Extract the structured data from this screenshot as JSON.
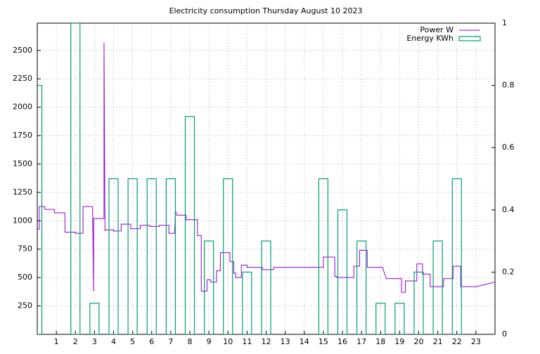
{
  "chart_data": {
    "type": "line",
    "title": "Electricity consumption Thursday August 10 2023",
    "xlim": [
      0,
      24
    ],
    "xticks": [
      1,
      2,
      3,
      4,
      5,
      6,
      7,
      8,
      9,
      10,
      11,
      12,
      13,
      14,
      15,
      16,
      17,
      18,
      19,
      20,
      21,
      22,
      23
    ],
    "ylim": [
      0,
      2740
    ],
    "yticks": [
      250,
      500,
      750,
      1000,
      1250,
      1500,
      1750,
      2000,
      2250,
      2500
    ],
    "y2lim": [
      0,
      1
    ],
    "y2ticks": [
      0,
      0.2,
      0.4,
      0.6,
      0.8,
      1
    ],
    "grid": true,
    "legend": "top-right",
    "series": [
      {
        "name": "Power W",
        "type": "line",
        "color": "#9400d3",
        "x": [
          0,
          0.1,
          0.1,
          0.4,
          0.4,
          0.9,
          0.9,
          1.45,
          1.45,
          2.0,
          2.0,
          2.4,
          2.4,
          2.9,
          2.9,
          2.95,
          2.95,
          3.5,
          3.5,
          3.55,
          3.55,
          4.0,
          4.0,
          4.4,
          4.4,
          4.9,
          4.9,
          5.4,
          5.4,
          5.9,
          5.9,
          6.4,
          6.4,
          6.9,
          6.9,
          7.2,
          7.25,
          7.3,
          7.8,
          7.8,
          8.4,
          8.4,
          8.6,
          8.6,
          8.9,
          8.9,
          9.1,
          9.1,
          9.4,
          9.4,
          9.6,
          9.6,
          10.1,
          10.1,
          10.3,
          10.3,
          10.4,
          10.4,
          10.7,
          10.7,
          11.0,
          11.0,
          11.8,
          11.8,
          12.4,
          12.4,
          15.0,
          15.0,
          15.6,
          15.6,
          15.7,
          15.7,
          16.6,
          16.6,
          16.9,
          16.9,
          17.3,
          17.3,
          18.1,
          18.3,
          19.1,
          19.1,
          19.3,
          19.3,
          19.9,
          19.9,
          20.2,
          20.2,
          20.6,
          20.6,
          21.3,
          21.3,
          21.8,
          21.8,
          22.2,
          22.2,
          23.0,
          23.0,
          24
        ],
        "values": [
          925,
          925,
          1125,
          1125,
          1100,
          1100,
          1070,
          1070,
          900,
          900,
          890,
          890,
          1125,
          1125,
          1100,
          380,
          1020,
          1020,
          2570,
          910,
          920,
          920,
          910,
          910,
          970,
          970,
          930,
          930,
          960,
          960,
          950,
          950,
          960,
          960,
          890,
          890,
          1090,
          1050,
          1050,
          1010,
          1010,
          870,
          870,
          380,
          380,
          480,
          480,
          460,
          460,
          560,
          560,
          720,
          720,
          640,
          640,
          540,
          540,
          500,
          500,
          610,
          610,
          590,
          590,
          570,
          570,
          590,
          590,
          680,
          680,
          510,
          510,
          500,
          500,
          600,
          600,
          740,
          740,
          590,
          590,
          490,
          490,
          370,
          370,
          470,
          470,
          620,
          620,
          530,
          530,
          420,
          420,
          490,
          490,
          600,
          600,
          420,
          420,
          420,
          460
        ]
      },
      {
        "name": "Energy KWh",
        "type": "bar",
        "axis": "y2",
        "color": "#009e73",
        "x": [
          0,
          1,
          2,
          3,
          4,
          5,
          6,
          7,
          8,
          9,
          10,
          11,
          12,
          13,
          14,
          15,
          16,
          17,
          18,
          19,
          20,
          21,
          22,
          23
        ],
        "values": [
          0.8,
          0,
          1,
          0.1,
          0.5,
          0.5,
          0.5,
          0.5,
          0.7,
          0.3,
          0.5,
          0.2,
          0.3,
          0,
          0,
          0.5,
          0.4,
          0.3,
          0.1,
          0.1,
          0.2,
          0.3,
          0.5,
          0
        ]
      }
    ]
  }
}
